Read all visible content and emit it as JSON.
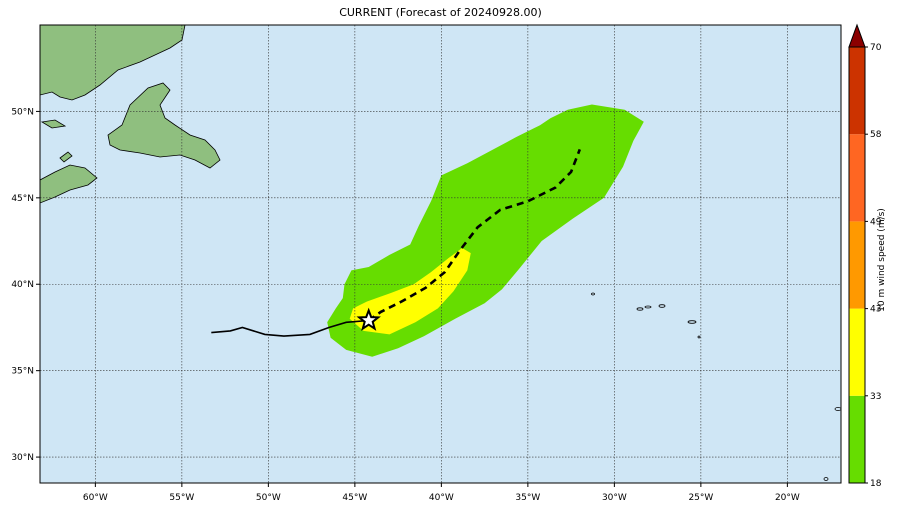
{
  "title": "CURRENT (Forecast of 20240928.00)",
  "colors": {
    "ocean": "#cfe6f5",
    "land": "#8fbf7f",
    "grid": "#333333",
    "track": "#000000",
    "band_18_33": "#66dd00",
    "band_33_43": "#ffff00",
    "band_43_49": "#ff9900",
    "band_49_58": "#ff6622",
    "band_58_70": "#cc3300",
    "band_above_70": "#8b0000"
  },
  "map": {
    "lon_range": [
      -63.2,
      -16.9
    ],
    "lat_range": [
      28.5,
      55.0
    ],
    "x_ticks": [
      "60°W",
      "55°W",
      "50°W",
      "45°W",
      "40°W",
      "35°W",
      "30°W",
      "25°W",
      "20°W"
    ],
    "x_tick_values": [
      -60,
      -55,
      -50,
      -45,
      -40,
      -35,
      -30,
      -25,
      -20
    ],
    "y_ticks": [
      "50°N",
      "45°N",
      "40°N",
      "35°N",
      "30°N"
    ],
    "y_tick_values": [
      50,
      45,
      40,
      35,
      30
    ]
  },
  "colorbar": {
    "label": "10 m wind speed (m/s)",
    "ticks": [
      "18",
      "33",
      "43",
      "49",
      "58",
      "70"
    ]
  },
  "storm": {
    "past_track": [
      [
        -53.3,
        37.2
      ],
      [
        -52.2,
        37.3
      ],
      [
        -51.5,
        37.5
      ],
      [
        -50.2,
        37.1
      ],
      [
        -49.1,
        37.0
      ],
      [
        -47.6,
        37.1
      ],
      [
        -46.5,
        37.5
      ],
      [
        -45.5,
        37.8
      ],
      [
        -44.2,
        37.9
      ]
    ],
    "forecast_track": [
      [
        -44.2,
        37.9
      ],
      [
        -43.5,
        38.4
      ],
      [
        -42.3,
        39.0
      ],
      [
        -40.9,
        39.8
      ],
      [
        -39.8,
        40.7
      ],
      [
        -38.9,
        42.0
      ],
      [
        -37.9,
        43.3
      ],
      [
        -36.6,
        44.3
      ],
      [
        -35.0,
        44.8
      ],
      [
        -33.4,
        45.6
      ],
      [
        -32.5,
        46.5
      ],
      [
        -32.0,
        47.8
      ]
    ],
    "current_position": [
      -44.2,
      37.9
    ]
  },
  "wind_field": {
    "ge_18": [
      [
        -46.4,
        36.9
      ],
      [
        -45.5,
        36.2
      ],
      [
        -44.0,
        35.8
      ],
      [
        -42.5,
        36.3
      ],
      [
        -41.0,
        37.0
      ],
      [
        -39.2,
        38.0
      ],
      [
        -37.5,
        38.9
      ],
      [
        -36.5,
        39.7
      ],
      [
        -35.5,
        40.9
      ],
      [
        -34.2,
        42.5
      ],
      [
        -32.4,
        43.8
      ],
      [
        -30.6,
        45.0
      ],
      [
        -29.5,
        46.8
      ],
      [
        -28.9,
        48.3
      ],
      [
        -28.3,
        49.4
      ],
      [
        -29.4,
        50.1
      ],
      [
        -31.3,
        50.4
      ],
      [
        -32.7,
        50.1
      ],
      [
        -33.7,
        49.6
      ],
      [
        -34.3,
        49.2
      ],
      [
        -35.7,
        48.5
      ],
      [
        -37.0,
        47.8
      ],
      [
        -38.5,
        47.0
      ],
      [
        -40.0,
        46.3
      ],
      [
        -40.6,
        44.8
      ],
      [
        -41.3,
        43.4
      ],
      [
        -41.8,
        42.3
      ],
      [
        -43.0,
        41.7
      ],
      [
        -44.2,
        41.0
      ],
      [
        -45.2,
        40.8
      ],
      [
        -45.6,
        40.0
      ],
      [
        -45.7,
        39.2
      ],
      [
        -46.1,
        38.6
      ],
      [
        -46.6,
        37.8
      ]
    ],
    "ge_33": [
      [
        -45.3,
        38.0
      ],
      [
        -44.5,
        37.3
      ],
      [
        -43.0,
        37.1
      ],
      [
        -41.5,
        37.8
      ],
      [
        -40.2,
        38.6
      ],
      [
        -39.3,
        39.6
      ],
      [
        -38.5,
        40.8
      ],
      [
        -38.3,
        41.8
      ],
      [
        -38.8,
        42.1
      ],
      [
        -39.6,
        41.5
      ],
      [
        -40.6,
        40.7
      ],
      [
        -41.6,
        40.0
      ],
      [
        -42.9,
        39.5
      ],
      [
        -44.3,
        39.0
      ],
      [
        -45.1,
        38.6
      ]
    ]
  }
}
